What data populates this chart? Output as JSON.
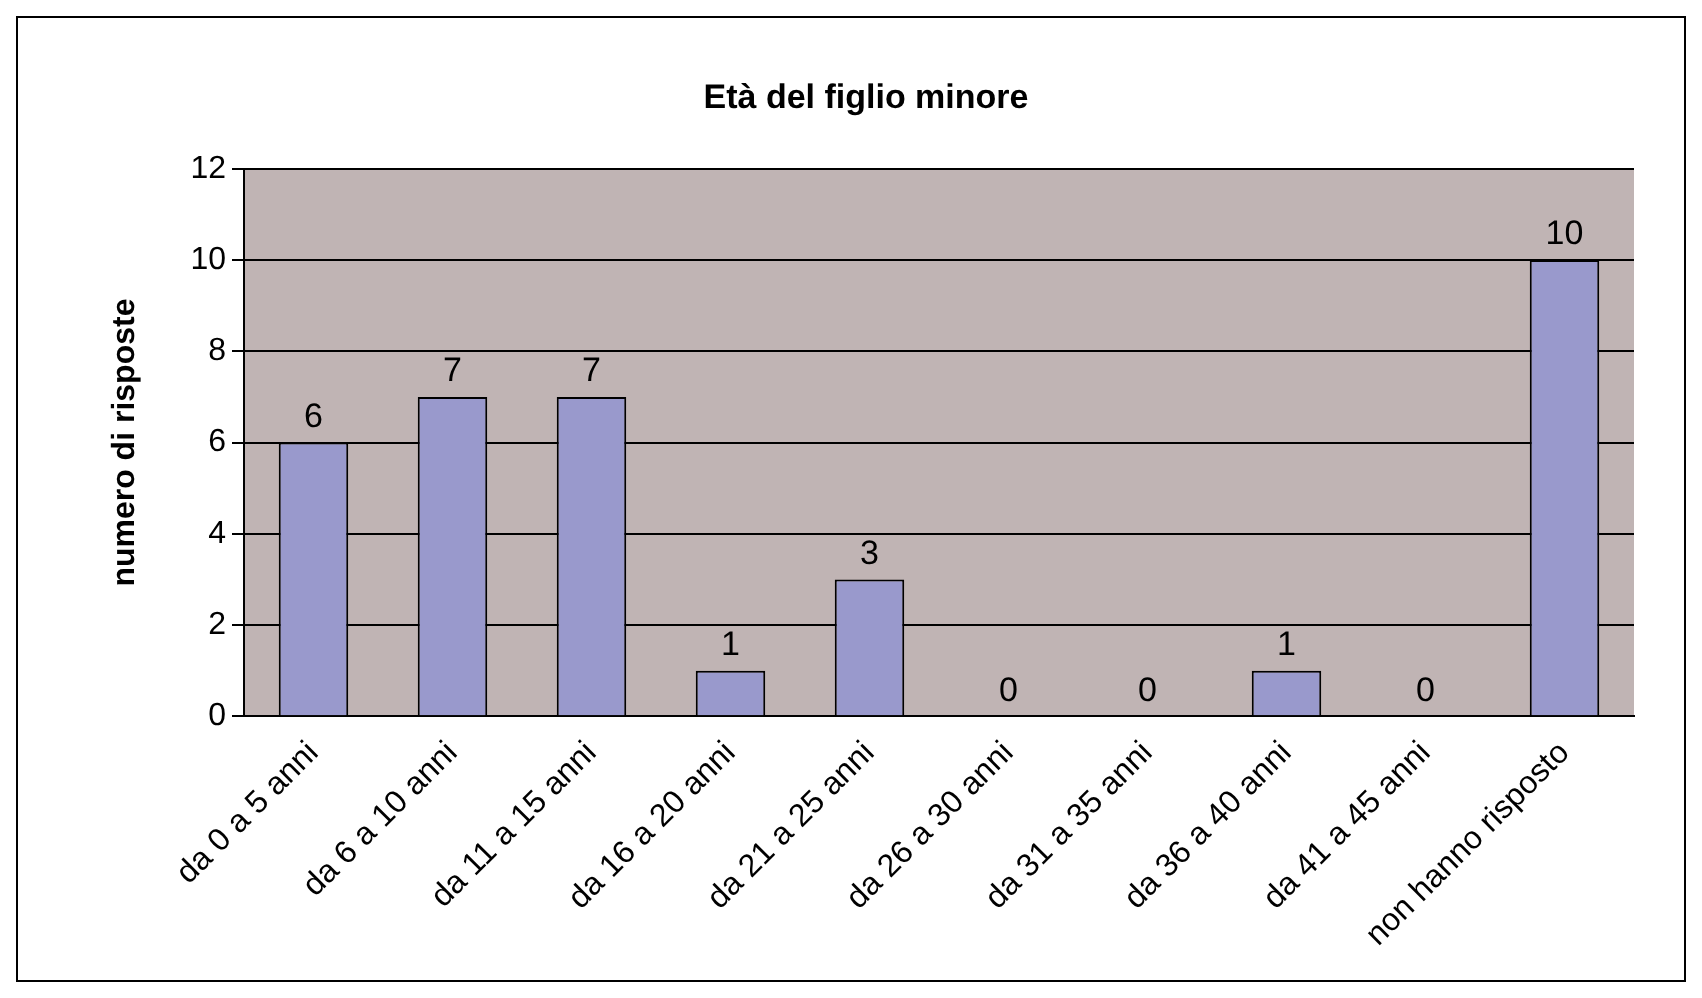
{
  "chart_data": {
    "type": "bar",
    "title": "Età del figlio minore",
    "ylabel": "numero di risposte",
    "categories": [
      "da 0 a 5 anni",
      "da 6 a 10 anni",
      "da 11 a 15 anni",
      "da 16 a 20 anni",
      "da 21 a 25 anni",
      "da 26 a 30 anni",
      "da 31 a 35 anni",
      "da 36 a 40 anni",
      "da 41 a 45 anni",
      "non hanno risposto"
    ],
    "values": [
      6,
      7,
      7,
      1,
      3,
      0,
      0,
      1,
      0,
      10
    ],
    "color": "#9999cc",
    "ylim": [
      0,
      12
    ],
    "yticks": [
      0,
      2,
      4,
      6,
      8,
      10,
      12
    ],
    "grid": "y",
    "data_labels": true
  }
}
